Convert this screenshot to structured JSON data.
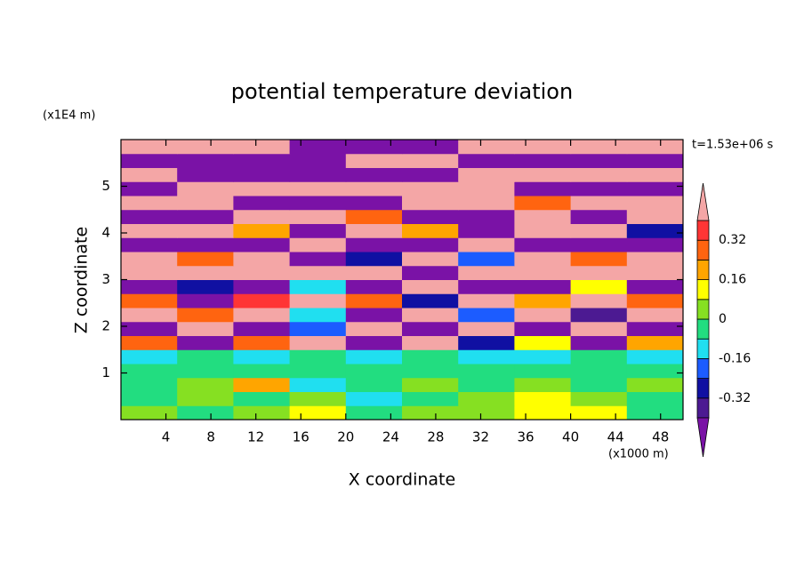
{
  "chart_data": {
    "type": "contour",
    "title": "potential temperature deviation",
    "xlabel": "X coordinate",
    "ylabel": "Z coordinate",
    "x_unit_label": "(x1000 m)",
    "y_unit_label": "(x1E4 m)",
    "annotation": "t=1.53e+06 s",
    "xlim": [
      0,
      50
    ],
    "ylim": [
      0,
      6
    ],
    "xticks": [
      4,
      8,
      12,
      16,
      20,
      24,
      28,
      32,
      36,
      40,
      44,
      48
    ],
    "yticks": [
      1,
      2,
      3,
      4,
      5
    ],
    "x": [
      2.5,
      7.5,
      12.5,
      17.5,
      22.5,
      27.5,
      32.5,
      37.5,
      42.5,
      47.5
    ],
    "y": [
      0.15,
      0.45,
      0.75,
      1.05,
      1.35,
      1.65,
      1.95,
      2.25,
      2.55,
      2.85,
      3.15,
      3.45,
      3.75,
      4.05,
      4.35,
      4.65,
      4.95,
      5.25,
      5.55,
      5.85
    ],
    "z": [
      [
        0.02,
        -0.03,
        0.05,
        0.1,
        -0.02,
        0.03,
        0.0,
        0.1,
        0.12,
        -0.02
      ],
      [
        -0.03,
        0.02,
        -0.05,
        0.05,
        -0.1,
        -0.04,
        0.03,
        0.1,
        0.05,
        -0.03
      ],
      [
        -0.05,
        0.03,
        0.2,
        -0.1,
        -0.05,
        0.02,
        -0.04,
        0.05,
        -0.03,
        0.01
      ],
      [
        -0.02,
        -0.04,
        -0.03,
        -0.05,
        -0.02,
        -0.03,
        -0.05,
        -0.01,
        -0.03,
        -0.04
      ],
      [
        -0.1,
        -0.05,
        -0.12,
        -0.08,
        -0.1,
        -0.05,
        -0.12,
        -0.1,
        -0.05,
        -0.1
      ],
      [
        0.3,
        -0.5,
        0.25,
        0.5,
        -0.5,
        0.45,
        -0.3,
        0.1,
        -0.5,
        0.2
      ],
      [
        -0.5,
        0.5,
        -0.45,
        -0.2,
        0.5,
        -0.5,
        0.5,
        -0.5,
        0.45,
        -0.5
      ],
      [
        0.45,
        0.3,
        0.5,
        -0.1,
        -0.5,
        0.5,
        -0.2,
        0.5,
        -0.4,
        0.5
      ],
      [
        0.3,
        -0.5,
        0.35,
        0.5,
        0.3,
        -0.3,
        0.5,
        0.2,
        0.5,
        0.25
      ],
      [
        -0.5,
        -0.3,
        -0.5,
        -0.1,
        -0.5,
        0.5,
        -0.5,
        -0.5,
        0.1,
        -0.5
      ],
      [
        0.5,
        0.5,
        0.45,
        0.5,
        0.5,
        -0.5,
        0.4,
        0.5,
        0.5,
        0.5
      ],
      [
        0.5,
        0.3,
        0.5,
        -0.5,
        -0.3,
        0.5,
        -0.2,
        0.5,
        0.3,
        0.5
      ],
      [
        -0.5,
        -0.5,
        -0.5,
        0.5,
        -0.5,
        -0.5,
        0.5,
        -0.5,
        -0.5,
        -0.5
      ],
      [
        0.5,
        0.5,
        0.2,
        -0.5,
        0.5,
        0.2,
        -0.5,
        0.5,
        0.5,
        -0.3
      ],
      [
        -0.5,
        -0.5,
        0.5,
        0.5,
        0.3,
        -0.5,
        -0.5,
        0.5,
        -0.5,
        0.5
      ],
      [
        0.5,
        0.5,
        -0.5,
        -0.5,
        -0.5,
        0.5,
        0.5,
        0.3,
        0.5,
        0.5
      ],
      [
        -0.5,
        0.5,
        0.5,
        0.5,
        0.5,
        0.5,
        0.5,
        -0.5,
        -0.5,
        -0.5
      ],
      [
        0.5,
        -0.5,
        -0.5,
        -0.5,
        -0.5,
        -0.5,
        0.5,
        0.5,
        0.5,
        0.5
      ],
      [
        -0.5,
        -0.5,
        -0.5,
        -0.5,
        0.5,
        0.5,
        -0.5,
        -0.5,
        -0.5,
        -0.5
      ],
      [
        0.5,
        0.5,
        0.5,
        -0.5,
        -0.5,
        -0.5,
        0.5,
        0.5,
        0.5,
        0.5
      ]
    ],
    "levels": [
      -0.4,
      -0.32,
      -0.24,
      -0.16,
      -0.08,
      0,
      0.08,
      0.16,
      0.24,
      0.32,
      0.4
    ],
    "colors": [
      "#7a12a6",
      "#4c1a92",
      "#1010a2",
      "#1c5cff",
      "#20dff0",
      "#22dd80",
      "#86e022",
      "#ffff00",
      "#ffa500",
      "#ff6410",
      "#ff3535",
      "#f4a6a6"
    ],
    "colorbar_ticks": [
      -0.32,
      -0.16,
      0,
      0.16,
      0.32
    ]
  }
}
